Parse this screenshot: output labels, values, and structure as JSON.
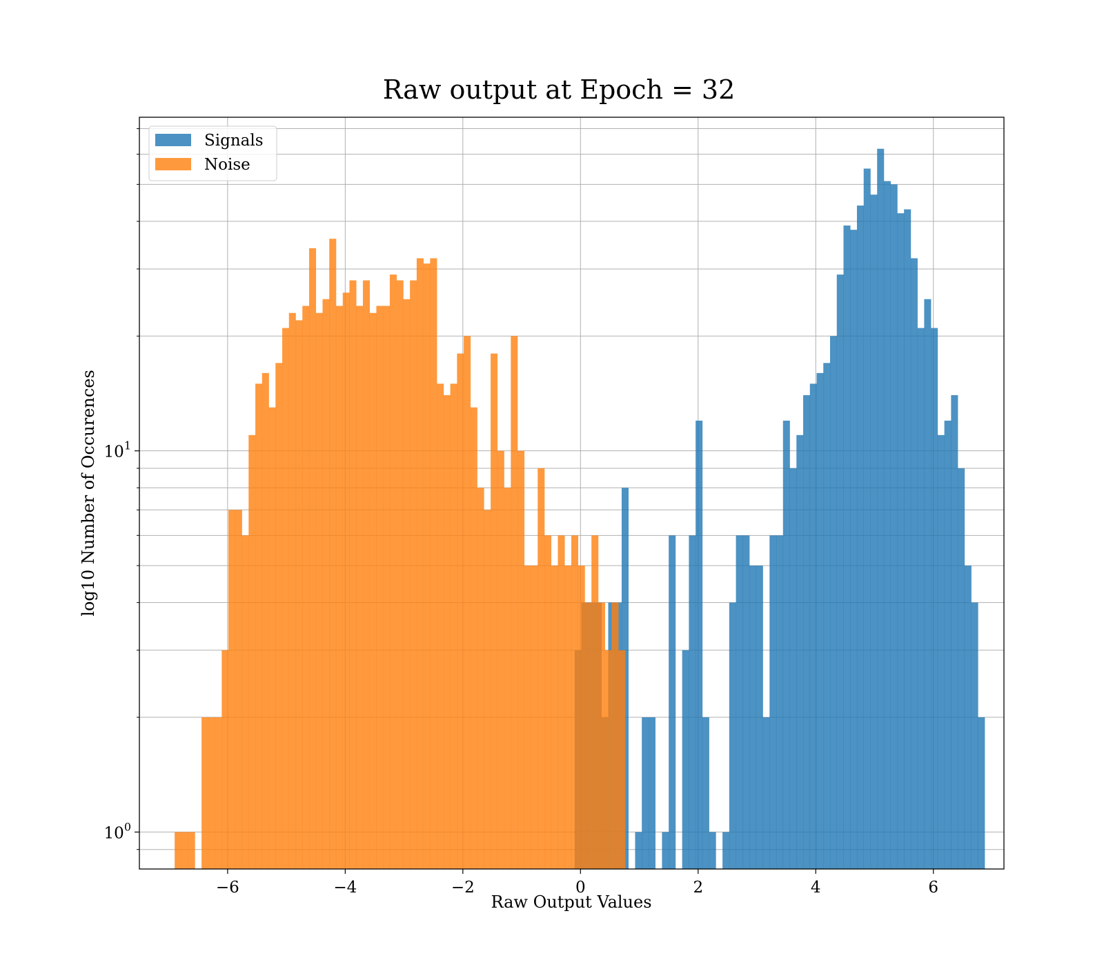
{
  "chart_data": {
    "type": "histogram",
    "title": "Raw output at Epoch = 32",
    "xlabel": "Raw Output Values",
    "ylabel": "log10 Number of Occurences",
    "xlim": [
      -7.5,
      7.2
    ],
    "ylim": [
      0.8,
      75
    ],
    "yscale": "log",
    "grid": true,
    "legend_position": "upper-left",
    "x_ticks": [
      {
        "value": -6,
        "label": "−6"
      },
      {
        "value": -4,
        "label": "−4"
      },
      {
        "value": -2,
        "label": "−2"
      },
      {
        "value": 0,
        "label": "0"
      },
      {
        "value": 2,
        "label": "2"
      },
      {
        "value": 4,
        "label": "4"
      },
      {
        "value": 6,
        "label": "6"
      }
    ],
    "y_major_ticks": [
      {
        "value": 1,
        "base": "10",
        "exp": "0"
      },
      {
        "value": 10,
        "base": "10",
        "exp": "1"
      }
    ],
    "y_minor_ticks": [
      0.9,
      2,
      3,
      4,
      5,
      6,
      7,
      8,
      9,
      20,
      30,
      40,
      50,
      60,
      70
    ],
    "series": [
      {
        "name": "Signals",
        "color": "#1f77b4",
        "opacity": 0.8,
        "bin_start": -0.1,
        "bin_width": 0.1143,
        "counts": [
          3,
          4,
          4,
          4,
          2,
          4,
          4,
          8,
          0,
          1,
          2,
          2,
          0,
          1,
          6,
          0,
          3,
          6,
          12,
          2,
          1,
          0,
          1,
          4,
          6,
          6,
          5,
          5,
          2,
          6,
          6,
          12,
          9,
          11,
          14,
          15,
          16,
          17,
          20,
          29,
          39,
          38,
          44,
          55,
          47,
          62,
          51,
          50,
          42,
          43,
          32,
          21,
          25,
          21,
          11,
          12,
          14,
          9,
          5,
          4,
          2
        ]
      },
      {
        "name": "Noise",
        "color": "#ff7f0e",
        "opacity": 0.8,
        "bin_start": -6.9,
        "bin_width": 0.1143,
        "counts": [
          1,
          1,
          1,
          0,
          2,
          2,
          2,
          3,
          7,
          7,
          6,
          11,
          15,
          16,
          13,
          17,
          21,
          23,
          22,
          24,
          34,
          23,
          25,
          36,
          24,
          26,
          28,
          24,
          28,
          23,
          24,
          24,
          29,
          28,
          25,
          28,
          32,
          31,
          32,
          15,
          14,
          15,
          18,
          20,
          13,
          8,
          7,
          18,
          10,
          8,
          20,
          10,
          5,
          5,
          9,
          6,
          5,
          6,
          5,
          6,
          5,
          4,
          6,
          4,
          3,
          4,
          3
        ]
      }
    ]
  }
}
